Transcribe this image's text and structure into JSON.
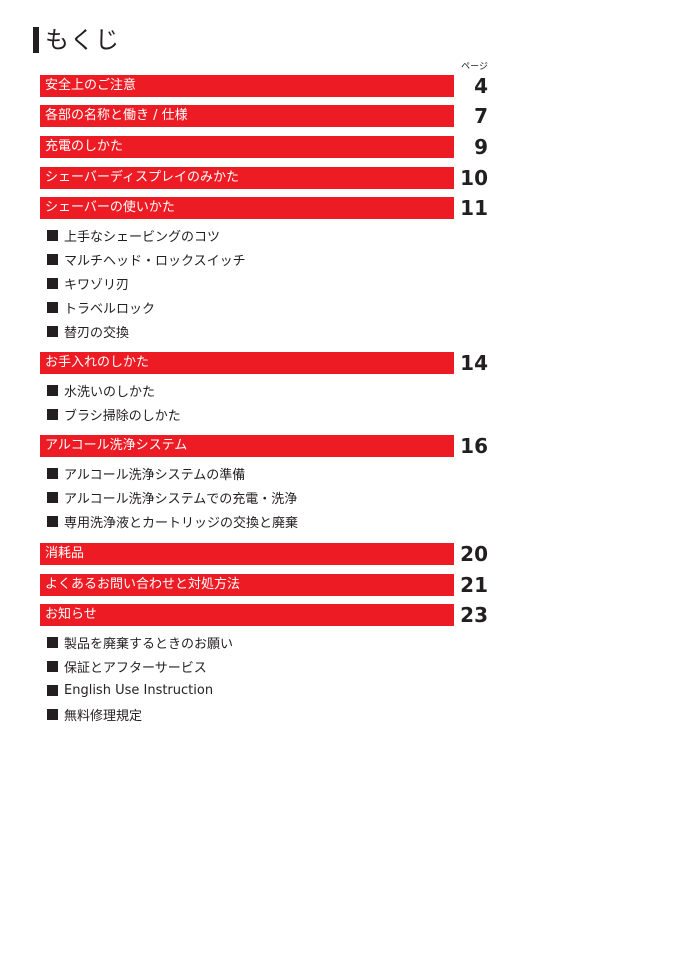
{
  "title": "もくじ",
  "page_label": "ページ",
  "sections": [
    {
      "label": "安全上のご注意",
      "page": "4",
      "items": []
    },
    {
      "label": "各部の名称と働き / 仕様",
      "page": "7",
      "items": []
    },
    {
      "label": "充電のしかた",
      "page": "9",
      "items": []
    },
    {
      "label": "シェーバーディスプレイのみかた",
      "page": "10",
      "items": []
    },
    {
      "label": "シェーバーの使いかた",
      "page": "11",
      "items": [
        "上手なシェービングのコツ",
        "マルチヘッド・ロックスイッチ",
        "キワゾリ刃",
        "トラベルロック",
        "替刃の交換"
      ]
    },
    {
      "label": "お手入れのしかた",
      "page": "14",
      "items": [
        "水洗いのしかた",
        "ブラシ掃除のしかた"
      ]
    },
    {
      "label": "アルコール洗浄システム",
      "page": "16",
      "items": [
        "アルコール洗浄システムの準備",
        "アルコール洗浄システムでの充電・洗浄",
        "専用洗浄液とカートリッジの交換と廃棄"
      ]
    },
    {
      "label": "消耗品",
      "page": "20",
      "items": []
    },
    {
      "label": "よくあるお問い合わせと対処方法",
      "page": "21",
      "items": []
    },
    {
      "label": "お知らせ",
      "page": "23",
      "items": [
        "製品を廃棄するときのお願い",
        "保証とアフターサービス",
        "English Use Instruction",
        "無料修理規定"
      ]
    }
  ],
  "colors": {
    "accent": "#ed1c24",
    "text": "#231f20",
    "bar_text": "#ffffff"
  }
}
